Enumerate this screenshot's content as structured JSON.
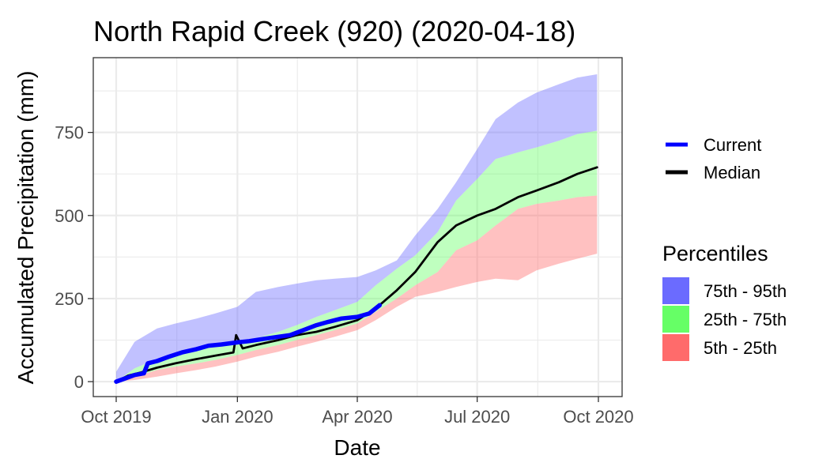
{
  "chart_data": {
    "type": "area",
    "title": "North Rapid Creek (920) (2020-04-18)",
    "xlabel": "Date",
    "ylabel": "Accumulated Precipitation (mm)",
    "xlim": [
      "2019-10-01",
      "2020-10-01"
    ],
    "ylim": [
      -45,
      975
    ],
    "x_ticks": [
      {
        "date": "2019-10-01",
        "label": "Oct 2019"
      },
      {
        "date": "2020-01-01",
        "label": "Jan 2020"
      },
      {
        "date": "2020-04-01",
        "label": "Apr 2020"
      },
      {
        "date": "2020-07-01",
        "label": "Jul 2020"
      },
      {
        "date": "2020-10-01",
        "label": "Oct 2020"
      }
    ],
    "y_ticks": [
      0,
      250,
      500,
      750
    ],
    "grid": true,
    "legend_position": "right",
    "bands": [
      {
        "name": "75th - 95th",
        "color": "#6b6bff",
        "x": [
          "2019-10-01",
          "2019-10-15",
          "2019-11-01",
          "2019-11-15",
          "2019-12-01",
          "2019-12-15",
          "2020-01-01",
          "2020-01-15",
          "2020-02-01",
          "2020-02-15",
          "2020-03-01",
          "2020-03-15",
          "2020-04-01",
          "2020-04-15",
          "2020-05-01",
          "2020-05-15",
          "2020-06-01",
          "2020-06-15",
          "2020-07-01",
          "2020-07-15",
          "2020-08-01",
          "2020-08-15",
          "2020-09-01",
          "2020-09-15",
          "2020-09-30"
        ],
        "lower": [
          0,
          40,
          68,
          82,
          95,
          105,
          115,
          130,
          150,
          170,
          195,
          215,
          240,
          290,
          340,
          380,
          450,
          545,
          610,
          670,
          690,
          705,
          725,
          745,
          755
        ],
        "upper": [
          30,
          120,
          160,
          175,
          190,
          205,
          225,
          270,
          285,
          295,
          305,
          310,
          315,
          335,
          365,
          440,
          520,
          600,
          700,
          790,
          840,
          870,
          895,
          915,
          925
        ]
      },
      {
        "name": "25th - 75th",
        "color": "#66ff66",
        "x": [
          "2019-10-01",
          "2019-10-15",
          "2019-11-01",
          "2019-11-15",
          "2019-12-01",
          "2019-12-15",
          "2020-01-01",
          "2020-01-15",
          "2020-02-01",
          "2020-02-15",
          "2020-03-01",
          "2020-03-15",
          "2020-04-01",
          "2020-04-15",
          "2020-05-01",
          "2020-05-15",
          "2020-06-01",
          "2020-06-15",
          "2020-07-01",
          "2020-07-15",
          "2020-08-01",
          "2020-08-15",
          "2020-09-01",
          "2020-09-15",
          "2020-09-30"
        ],
        "lower": [
          0,
          15,
          35,
          45,
          55,
          65,
          80,
          95,
          110,
          125,
          140,
          155,
          175,
          210,
          250,
          290,
          330,
          395,
          425,
          470,
          520,
          535,
          545,
          555,
          560
        ],
        "upper": [
          0,
          40,
          68,
          82,
          95,
          105,
          115,
          130,
          150,
          170,
          195,
          215,
          240,
          290,
          340,
          380,
          450,
          545,
          610,
          670,
          690,
          705,
          725,
          745,
          755
        ]
      },
      {
        "name": "5th - 25th",
        "color": "#ff6b6b",
        "x": [
          "2019-10-01",
          "2019-10-15",
          "2019-11-01",
          "2019-11-15",
          "2019-12-01",
          "2019-12-15",
          "2020-01-01",
          "2020-01-15",
          "2020-02-01",
          "2020-02-15",
          "2020-03-01",
          "2020-03-15",
          "2020-04-01",
          "2020-04-15",
          "2020-05-01",
          "2020-05-15",
          "2020-06-01",
          "2020-06-15",
          "2020-07-01",
          "2020-07-15",
          "2020-08-01",
          "2020-08-15",
          "2020-09-01",
          "2020-09-15",
          "2020-09-30"
        ],
        "lower": [
          0,
          5,
          15,
          25,
          35,
          45,
          60,
          75,
          90,
          105,
          120,
          135,
          155,
          185,
          225,
          255,
          270,
          285,
          300,
          310,
          305,
          335,
          355,
          370,
          385
        ],
        "upper": [
          0,
          15,
          35,
          45,
          55,
          65,
          80,
          95,
          110,
          125,
          140,
          155,
          175,
          210,
          250,
          290,
          330,
          395,
          425,
          470,
          520,
          535,
          545,
          555,
          560
        ]
      }
    ],
    "series": [
      {
        "name": "Current",
        "color": "#0000ff",
        "x": [
          "2019-10-01",
          "2019-10-08",
          "2019-10-15",
          "2019-10-22",
          "2019-10-25",
          "2019-11-01",
          "2019-11-10",
          "2019-11-20",
          "2019-12-01",
          "2019-12-10",
          "2019-12-20",
          "2020-01-01",
          "2020-01-10",
          "2020-01-20",
          "2020-02-01",
          "2020-02-10",
          "2020-02-20",
          "2020-03-01",
          "2020-03-10",
          "2020-03-20",
          "2020-04-01",
          "2020-04-10",
          "2020-04-18"
        ],
        "y": [
          0,
          10,
          20,
          25,
          55,
          62,
          75,
          88,
          98,
          108,
          112,
          118,
          122,
          128,
          135,
          140,
          155,
          170,
          180,
          190,
          195,
          205,
          230
        ]
      },
      {
        "name": "Median",
        "color": "#000000",
        "x": [
          "2019-10-01",
          "2019-10-10",
          "2019-10-20",
          "2019-11-01",
          "2019-11-15",
          "2019-12-01",
          "2019-12-15",
          "2019-12-29",
          "2019-12-31",
          "2020-01-05",
          "2020-01-15",
          "2020-02-01",
          "2020-02-15",
          "2020-03-01",
          "2020-03-15",
          "2020-04-01",
          "2020-04-15",
          "2020-05-01",
          "2020-05-15",
          "2020-06-01",
          "2020-06-15",
          "2020-07-01",
          "2020-07-15",
          "2020-08-01",
          "2020-08-15",
          "2020-09-01",
          "2020-09-15",
          "2020-09-30"
        ],
        "y": [
          0,
          18,
          28,
          42,
          55,
          68,
          78,
          88,
          140,
          100,
          110,
          125,
          140,
          150,
          165,
          185,
          220,
          275,
          330,
          420,
          470,
          500,
          520,
          555,
          575,
          600,
          625,
          645
        ]
      }
    ]
  }
}
